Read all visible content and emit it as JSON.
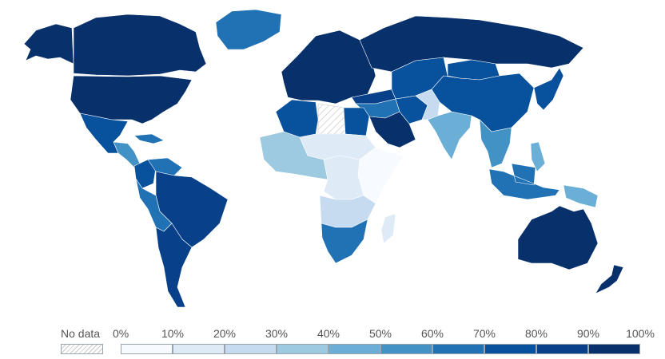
{
  "legend": {
    "no_data_label": "No data",
    "tick_labels": [
      "0%",
      "10%",
      "20%",
      "30%",
      "40%",
      "50%",
      "60%",
      "70%",
      "80%",
      "90%",
      "100%"
    ],
    "bin_colors": [
      "#f7fbff",
      "#deebf7",
      "#c6dbef",
      "#9ecae1",
      "#6baed6",
      "#4292c6",
      "#2171b5",
      "#08519c",
      "#08418a",
      "#08306b"
    ]
  },
  "regions": [
    {
      "name": "canada",
      "color": "#08306b"
    },
    {
      "name": "alaska",
      "color": "#08306b"
    },
    {
      "name": "greenland",
      "color": "#2171b5"
    },
    {
      "name": "usa",
      "color": "#08306b"
    },
    {
      "name": "mexico",
      "color": "#08519c"
    },
    {
      "name": "central-america",
      "color": "#4292c6"
    },
    {
      "name": "caribbean",
      "color": "#2171b5"
    },
    {
      "name": "colombia",
      "color": "#08519c"
    },
    {
      "name": "venezuela",
      "color": "#2171b5"
    },
    {
      "name": "brazil",
      "color": "#08418a"
    },
    {
      "name": "peru-bolivia",
      "color": "#2171b5"
    },
    {
      "name": "argentina-chile",
      "color": "#08418a"
    },
    {
      "name": "europe",
      "color": "#08306b"
    },
    {
      "name": "russia",
      "color": "#08306b"
    },
    {
      "name": "turkey",
      "color": "#08418a"
    },
    {
      "name": "maghreb",
      "color": "#08519c"
    },
    {
      "name": "libya",
      "color": "#ffffff",
      "no_data": true
    },
    {
      "name": "egypt",
      "color": "#08519c"
    },
    {
      "name": "saudi-arabia",
      "color": "#08306b"
    },
    {
      "name": "middle-east",
      "color": "#2171b5"
    },
    {
      "name": "iran",
      "color": "#08519c"
    },
    {
      "name": "central-asia",
      "color": "#08519c"
    },
    {
      "name": "afghanistan-pakistan",
      "color": "#c6dbef"
    },
    {
      "name": "india",
      "color": "#6baed6"
    },
    {
      "name": "china",
      "color": "#08519c"
    },
    {
      "name": "mongolia",
      "color": "#08519c"
    },
    {
      "name": "southeast-asia",
      "color": "#4292c6"
    },
    {
      "name": "japan-korea",
      "color": "#08519c"
    },
    {
      "name": "indonesia",
      "color": "#2171b5"
    },
    {
      "name": "png",
      "color": "#6baed6"
    },
    {
      "name": "philippines",
      "color": "#6baed6"
    },
    {
      "name": "west-africa",
      "color": "#9ecae1"
    },
    {
      "name": "sahel",
      "color": "#deebf7"
    },
    {
      "name": "central-africa",
      "color": "#deebf7"
    },
    {
      "name": "east-africa",
      "color": "#f7fbff"
    },
    {
      "name": "angola-zambia",
      "color": "#c6dbef"
    },
    {
      "name": "southern-africa",
      "color": "#2171b5"
    },
    {
      "name": "madagascar",
      "color": "#deebf7"
    },
    {
      "name": "australia",
      "color": "#08306b"
    },
    {
      "name": "new-zealand",
      "color": "#08306b"
    }
  ]
}
